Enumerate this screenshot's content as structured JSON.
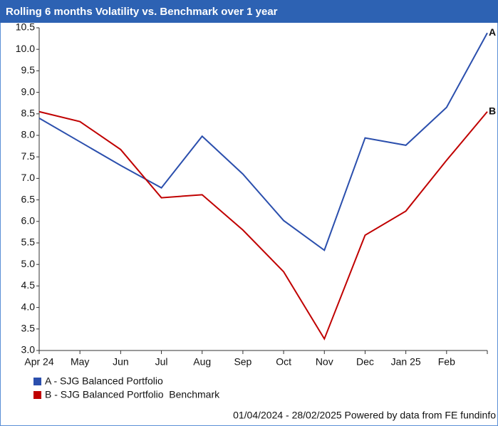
{
  "chart_data": {
    "type": "line",
    "title": "Rolling 6 months Volatility vs. Benchmark over 1 year",
    "categories": [
      "Apr 24",
      "May",
      "Jun",
      "Jul",
      "Aug",
      "Sep",
      "Oct",
      "Nov",
      "Dec",
      "Jan 25",
      "Feb",
      null
    ],
    "series": [
      {
        "name": "A - SJG Balanced Portfolio",
        "end_label": "A",
        "color": "#2b4fad",
        "values": [
          8.4,
          7.85,
          7.3,
          6.78,
          7.98,
          7.1,
          6.02,
          5.33,
          7.94,
          7.77,
          8.65,
          10.38
        ]
      },
      {
        "name": "B - SJG Balanced Portfolio  Benchmark",
        "end_label": "B",
        "color": "#c00000",
        "values": [
          8.55,
          8.32,
          7.67,
          6.55,
          6.62,
          5.8,
          4.83,
          3.27,
          5.68,
          6.24,
          7.42,
          8.55
        ]
      }
    ],
    "ylim": [
      3,
      10.5
    ],
    "yticks": [
      {
        "value": 3,
        "label": "3.0"
      },
      {
        "value": 3.5,
        "label": "3.5"
      },
      {
        "value": 4,
        "label": "4.0"
      },
      {
        "value": 4.5,
        "label": "4.5"
      },
      {
        "value": 5,
        "label": "5.0"
      },
      {
        "value": 5.5,
        "label": "5.5"
      },
      {
        "value": 6,
        "label": "6.0"
      },
      {
        "value": 6.5,
        "label": "6.5"
      },
      {
        "value": 7,
        "label": "7.0"
      },
      {
        "value": 7.5,
        "label": "7.5"
      },
      {
        "value": 8,
        "label": "8.0"
      },
      {
        "value": 8.5,
        "label": "8.5"
      },
      {
        "value": 9,
        "label": "9.0"
      },
      {
        "value": 9.5,
        "label": "9.5"
      },
      {
        "value": 10,
        "label": "10.0"
      },
      {
        "value": 10.5,
        "label": "10.5"
      }
    ],
    "grid": false,
    "footer": "01/04/2024 - 28/02/2025 Powered by data from FE fundinfo"
  }
}
